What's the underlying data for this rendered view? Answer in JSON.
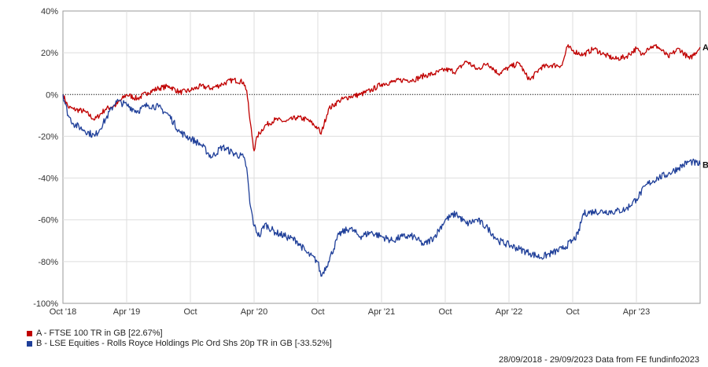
{
  "chart_data": {
    "type": "line",
    "ylim": [
      -100,
      40
    ],
    "yticks": [
      40,
      20,
      0,
      -20,
      -40,
      -60,
      -80,
      -100
    ],
    "ytick_labels": [
      "40%",
      "20%",
      "0%",
      "-20%",
      "-40%",
      "-60%",
      "-80%",
      "-100%"
    ],
    "xtick_labels": [
      "Oct '18",
      "Apr '19",
      "Oct",
      "Apr '20",
      "Oct",
      "Apr '21",
      "Oct",
      "Apr '22",
      "Oct",
      "Apr '23"
    ],
    "x_start": "2018-09-28",
    "x_end": "2023-09-29",
    "grid": true,
    "series": [
      {
        "name": "A - FTSE 100 TR in GB [22.67%]",
        "end_label": "A",
        "color": "#c00000",
        "points": [
          [
            0,
            0
          ],
          [
            0.5,
            -6
          ],
          [
            1,
            -7
          ],
          [
            2,
            -8
          ],
          [
            3,
            -12
          ],
          [
            4,
            -7
          ],
          [
            5,
            -5
          ],
          [
            6,
            0
          ],
          [
            7,
            -2
          ],
          [
            8,
            1
          ],
          [
            9,
            3
          ],
          [
            10,
            4
          ],
          [
            11,
            1
          ],
          [
            12,
            2
          ],
          [
            13,
            4
          ],
          [
            14,
            3
          ],
          [
            15,
            5
          ],
          [
            16,
            7
          ],
          [
            17,
            6
          ],
          [
            17.3,
            2
          ],
          [
            17.6,
            -12
          ],
          [
            18,
            -27
          ],
          [
            18.3,
            -20
          ],
          [
            19,
            -15
          ],
          [
            20,
            -12
          ],
          [
            21,
            -13
          ],
          [
            22,
            -11
          ],
          [
            23,
            -12
          ],
          [
            24,
            -16
          ],
          [
            24.3,
            -19
          ],
          [
            25,
            -7
          ],
          [
            26,
            -3
          ],
          [
            27,
            -1
          ],
          [
            28,
            0
          ],
          [
            29,
            2
          ],
          [
            30,
            5
          ],
          [
            31,
            6
          ],
          [
            32,
            7
          ],
          [
            33,
            7
          ],
          [
            34,
            9
          ],
          [
            35,
            10
          ],
          [
            36,
            12
          ],
          [
            37,
            11
          ],
          [
            38,
            16
          ],
          [
            39,
            12
          ],
          [
            40,
            15
          ],
          [
            41,
            10
          ],
          [
            42,
            13
          ],
          [
            43,
            15
          ],
          [
            43.5,
            10
          ],
          [
            44,
            7
          ],
          [
            45,
            13
          ],
          [
            46,
            14
          ],
          [
            47,
            14
          ],
          [
            47.5,
            23
          ],
          [
            48,
            21
          ],
          [
            49,
            19
          ],
          [
            50,
            22
          ],
          [
            51,
            19
          ],
          [
            52,
            17
          ],
          [
            53,
            18
          ],
          [
            54,
            22
          ],
          [
            54.5,
            19
          ],
          [
            55,
            22
          ],
          [
            55.5,
            23
          ],
          [
            56,
            23
          ],
          [
            57,
            18
          ],
          [
            58,
            22
          ],
          [
            59,
            17
          ],
          [
            60,
            22.67
          ]
        ]
      },
      {
        "name": "B - LSE Equities - Rolls Royce Holdings Plc Ord Shs 20p TR in GB [-33.52%]",
        "end_label": "B",
        "color": "#1f3f99",
        "points": [
          [
            0,
            0
          ],
          [
            0.5,
            -10
          ],
          [
            1,
            -14
          ],
          [
            2,
            -17
          ],
          [
            3,
            -20
          ],
          [
            4,
            -12
          ],
          [
            5,
            -3
          ],
          [
            6,
            -5
          ],
          [
            7,
            -8
          ],
          [
            8,
            -5
          ],
          [
            9,
            -6
          ],
          [
            10,
            -10
          ],
          [
            11,
            -18
          ],
          [
            12,
            -21
          ],
          [
            13,
            -24
          ],
          [
            14,
            -30
          ],
          [
            15,
            -25
          ],
          [
            16,
            -28
          ],
          [
            17,
            -30
          ],
          [
            17.3,
            -35
          ],
          [
            17.6,
            -52
          ],
          [
            18,
            -63
          ],
          [
            18.5,
            -68
          ],
          [
            19,
            -62
          ],
          [
            20,
            -66
          ],
          [
            21,
            -68
          ],
          [
            22,
            -70
          ],
          [
            23,
            -76
          ],
          [
            24,
            -80
          ],
          [
            24.3,
            -87
          ],
          [
            25,
            -80
          ],
          [
            26,
            -67
          ],
          [
            27,
            -64
          ],
          [
            28,
            -68
          ],
          [
            29,
            -66
          ],
          [
            30,
            -68
          ],
          [
            31,
            -70
          ],
          [
            32,
            -68
          ],
          [
            33,
            -68
          ],
          [
            34,
            -72
          ],
          [
            35,
            -68
          ],
          [
            36,
            -60
          ],
          [
            37,
            -57
          ],
          [
            38,
            -62
          ],
          [
            39,
            -60
          ],
          [
            40,
            -64
          ],
          [
            41,
            -70
          ],
          [
            42,
            -72
          ],
          [
            43,
            -74
          ],
          [
            44,
            -76
          ],
          [
            45,
            -78
          ],
          [
            46,
            -76
          ],
          [
            47,
            -74
          ],
          [
            48,
            -70
          ],
          [
            48.5,
            -67
          ],
          [
            49,
            -57
          ],
          [
            50,
            -56
          ],
          [
            51,
            -56
          ],
          [
            52,
            -56
          ],
          [
            53,
            -55
          ],
          [
            54,
            -50
          ],
          [
            55,
            -43
          ],
          [
            56,
            -40
          ],
          [
            57,
            -38
          ],
          [
            58,
            -35
          ],
          [
            59,
            -32
          ],
          [
            60,
            -33.52
          ]
        ]
      }
    ]
  },
  "footer": {
    "text": "28/09/2018 - 29/09/2023 Data from FE fundinfo2023"
  }
}
